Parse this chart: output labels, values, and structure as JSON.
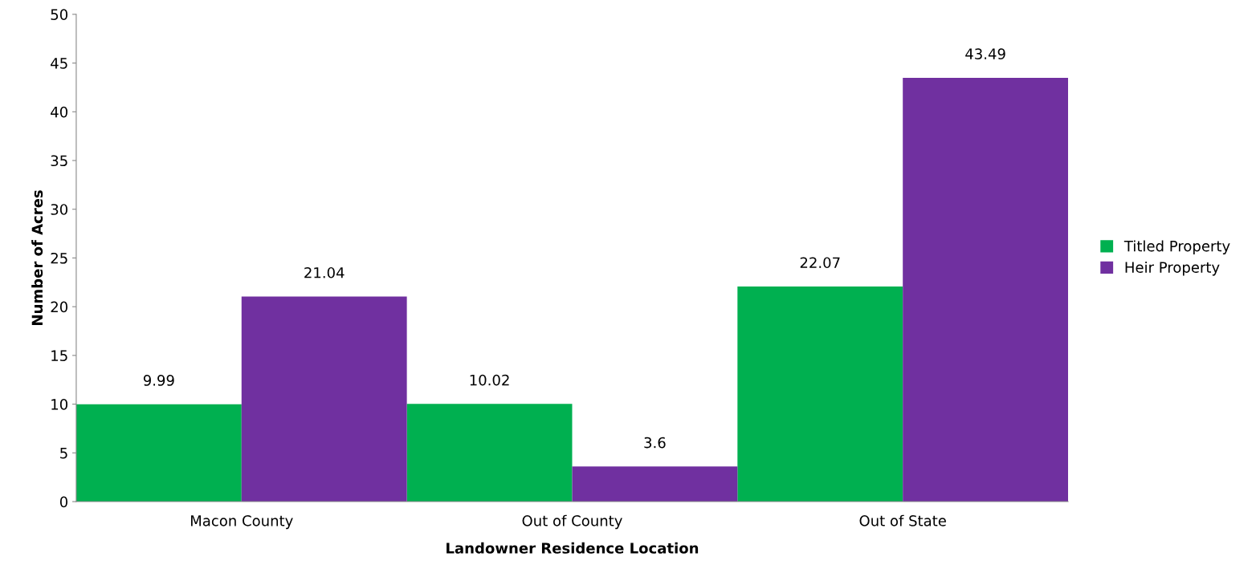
{
  "chart_data": {
    "type": "bar",
    "xlabel": "Landowner Residence Location",
    "ylabel": "Number of Acres",
    "categories": [
      "Macon County",
      "Out of County",
      "Out of State"
    ],
    "series": [
      {
        "name": "Titled Property",
        "color": "#00b050",
        "values": [
          9.99,
          10.02,
          22.07
        ]
      },
      {
        "name": "Heir Property",
        "color": "#7030a0",
        "values": [
          21.04,
          3.6,
          43.49
        ]
      }
    ],
    "ylim": [
      0,
      50
    ],
    "yticks": [
      0,
      5,
      10,
      15,
      20,
      25,
      30,
      35,
      40,
      45,
      50
    ],
    "data_labels": true,
    "legend": "right",
    "grid": false
  }
}
